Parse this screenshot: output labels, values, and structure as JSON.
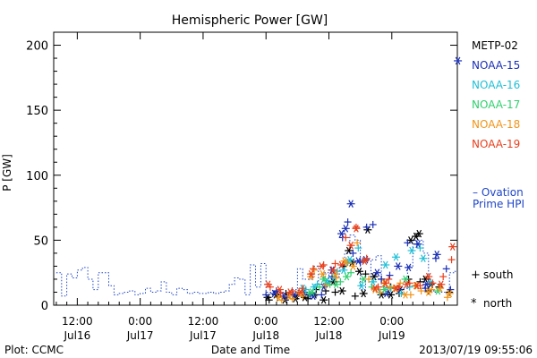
{
  "chart_data": {
    "type": "scatter",
    "title": "Hemispheric Power [GW]",
    "xlabel": "Date and Time",
    "ylabel": "P [GW]",
    "ylim": [
      0,
      210
    ],
    "yticks": [
      0,
      50,
      100,
      150,
      200
    ],
    "x_unit": "hours from 2013-07-16 00:00 UT",
    "xlim": [
      7.5,
      84.5
    ],
    "xticks": [
      {
        "x": 12,
        "line1": "12:00",
        "line2": "Jul16"
      },
      {
        "x": 24,
        "line1": "0:00",
        "line2": "Jul17"
      },
      {
        "x": 36,
        "line1": "12:00",
        "line2": "Jul17"
      },
      {
        "x": 48,
        "line1": "0:00",
        "line2": "Jul18"
      },
      {
        "x": 60,
        "line1": "12:00",
        "line2": "Jul18"
      },
      {
        "x": 72,
        "line1": "0:00",
        "line2": "Jul19"
      }
    ],
    "grid": false,
    "legend_position": "right",
    "series": [
      {
        "name": "METP-02",
        "color": "#000000",
        "south": [
          [
            48.6,
            4
          ],
          [
            50.2,
            6
          ],
          [
            51.8,
            9
          ],
          [
            54.0,
            7
          ],
          [
            56.0,
            5
          ],
          [
            57.6,
            12
          ],
          [
            59.4,
            11
          ],
          [
            61.2,
            10
          ],
          [
            62.8,
            30
          ],
          [
            65.0,
            7
          ],
          [
            67.0,
            24
          ],
          [
            70.0,
            20
          ],
          [
            71.8,
            14
          ],
          [
            73.4,
            9
          ],
          [
            75.2,
            20
          ],
          [
            77.4,
            18
          ],
          [
            79.0,
            11
          ],
          [
            81.0,
            14
          ],
          [
            83.0,
            10
          ]
        ],
        "north": [
          [
            48.3,
            6
          ],
          [
            49.9,
            8
          ],
          [
            51.6,
            4
          ],
          [
            53.6,
            5
          ],
          [
            55.4,
            6
          ],
          [
            57.2,
            8
          ],
          [
            59.0,
            4
          ],
          [
            60.8,
            18
          ],
          [
            62.5,
            11
          ],
          [
            63.8,
            42
          ],
          [
            64.4,
            33
          ],
          [
            65.8,
            26
          ],
          [
            66.6,
            9
          ],
          [
            67.4,
            58
          ],
          [
            68.6,
            22
          ],
          [
            70.0,
            8
          ],
          [
            71.8,
            8
          ],
          [
            73.6,
            12
          ],
          [
            75.6,
            50
          ],
          [
            76.6,
            53
          ],
          [
            77.2,
            55
          ],
          [
            78.4,
            20
          ],
          [
            79.4,
            16
          ]
        ]
      },
      {
        "name": "NOAA-15",
        "color": "#1a2fb6",
        "south": [
          [
            48.0,
            8
          ],
          [
            50.0,
            11
          ],
          [
            52.0,
            6
          ],
          [
            54.2,
            9
          ],
          [
            56.4,
            8
          ],
          [
            58.6,
            8
          ],
          [
            60.6,
            22
          ],
          [
            62.6,
            52
          ],
          [
            63.6,
            64
          ],
          [
            64.6,
            40
          ],
          [
            66.0,
            33
          ],
          [
            67.2,
            60
          ],
          [
            68.4,
            62
          ],
          [
            70.0,
            20
          ],
          [
            71.6,
            23
          ],
          [
            73.4,
            12
          ],
          [
            75.0,
            48
          ],
          [
            76.8,
            47
          ],
          [
            78.4,
            13
          ],
          [
            80.4,
            36
          ],
          [
            82.4,
            28
          ],
          [
            83.2,
            12
          ]
        ],
        "north": [
          [
            49.6,
            9
          ],
          [
            51.4,
            7
          ],
          [
            53.4,
            8
          ],
          [
            55.2,
            10
          ],
          [
            57.0,
            7
          ],
          [
            59.0,
            14
          ],
          [
            60.6,
            27
          ],
          [
            62.4,
            55
          ],
          [
            63.2,
            59
          ],
          [
            64.2,
            78
          ],
          [
            65.6,
            34
          ],
          [
            67.0,
            35
          ],
          [
            69.2,
            25
          ],
          [
            71.0,
            9
          ],
          [
            73.2,
            30
          ],
          [
            75.2,
            29
          ],
          [
            77.0,
            47
          ],
          [
            78.6,
            16
          ],
          [
            80.6,
            39
          ],
          [
            84.6,
            188
          ]
        ]
      },
      {
        "name": "NOAA-16",
        "color": "#1fbfd6",
        "south": [
          [
            55.6,
            12
          ],
          [
            57.8,
            16
          ],
          [
            59.6,
            17
          ],
          [
            61.6,
            26
          ],
          [
            63.6,
            33
          ],
          [
            65.6,
            44
          ],
          [
            69.6,
            10
          ],
          [
            71.8,
            13
          ],
          [
            73.8,
            9
          ],
          [
            75.4,
            14
          ],
          [
            77.4,
            44
          ],
          [
            79.4,
            18
          ]
        ],
        "north": [
          [
            55.0,
            13
          ],
          [
            57.2,
            14
          ],
          [
            59.6,
            19
          ],
          [
            61.0,
            21
          ],
          [
            62.8,
            27
          ],
          [
            64.0,
            35
          ],
          [
            66.2,
            15
          ],
          [
            68.4,
            18
          ],
          [
            70.8,
            31
          ],
          [
            72.8,
            37
          ],
          [
            75.8,
            42
          ],
          [
            78.0,
            36
          ]
        ]
      },
      {
        "name": "NOAA-17",
        "color": "#2ed06e",
        "south": [
          [
            56.2,
            9
          ],
          [
            58.2,
            14
          ],
          [
            60.2,
            16
          ],
          [
            62.2,
            18
          ],
          [
            64.2,
            25
          ],
          [
            68.2,
            14
          ],
          [
            72.4,
            13
          ],
          [
            76.4,
            15
          ]
        ],
        "north": [
          [
            56.8,
            10
          ],
          [
            59.0,
            20
          ],
          [
            61.4,
            16
          ],
          [
            63.4,
            22
          ],
          [
            66.6,
            20
          ],
          [
            70.6,
            12
          ],
          [
            74.6,
            20
          ],
          [
            80.8,
            11
          ]
        ]
      },
      {
        "name": "NOAA-18",
        "color": "#f29418",
        "south": [
          [
            51.0,
            4
          ],
          [
            53.0,
            5
          ],
          [
            55.0,
            7
          ],
          [
            57.2,
            27
          ],
          [
            59.4,
            15
          ],
          [
            61.4,
            21
          ],
          [
            63.4,
            32
          ],
          [
            65.4,
            48
          ],
          [
            67.6,
            20
          ],
          [
            69.8,
            10
          ],
          [
            71.6,
            14
          ],
          [
            73.6,
            17
          ],
          [
            75.6,
            8
          ],
          [
            77.6,
            11
          ],
          [
            79.6,
            12
          ],
          [
            82.6,
            6
          ]
        ],
        "north": [
          [
            50.4,
            6
          ],
          [
            52.4,
            7
          ],
          [
            54.4,
            9
          ],
          [
            56.6,
            22
          ],
          [
            58.8,
            24
          ],
          [
            61.2,
            24
          ],
          [
            63.0,
            34
          ],
          [
            64.6,
            30
          ],
          [
            66.8,
            34
          ],
          [
            68.8,
            12
          ],
          [
            70.6,
            17
          ],
          [
            72.6,
            13
          ],
          [
            74.6,
            8
          ],
          [
            76.6,
            15
          ],
          [
            79.0,
            10
          ],
          [
            81.2,
            13
          ],
          [
            83.0,
            9
          ]
        ]
      },
      {
        "name": "NOAA-19",
        "color": "#e8401e",
        "south": [
          [
            48.8,
            14
          ],
          [
            50.8,
            9
          ],
          [
            53.0,
            11
          ],
          [
            55.0,
            13
          ],
          [
            57.0,
            28
          ],
          [
            59.0,
            31
          ],
          [
            61.2,
            32
          ],
          [
            63.2,
            52
          ],
          [
            65.2,
            60
          ],
          [
            67.2,
            36
          ],
          [
            69.4,
            14
          ],
          [
            71.4,
            20
          ],
          [
            73.4,
            14
          ],
          [
            75.4,
            17
          ],
          [
            77.4,
            15
          ],
          [
            79.8,
            17
          ],
          [
            81.8,
            22
          ],
          [
            83.4,
            35
          ]
        ],
        "north": [
          [
            48.4,
            16
          ],
          [
            50.6,
            12
          ],
          [
            52.6,
            10
          ],
          [
            54.6,
            10
          ],
          [
            56.6,
            24
          ],
          [
            58.6,
            30
          ],
          [
            60.8,
            27
          ],
          [
            62.4,
            31
          ],
          [
            64.2,
            46
          ],
          [
            65.2,
            59
          ],
          [
            66.8,
            34
          ],
          [
            68.8,
            13
          ],
          [
            70.8,
            17
          ],
          [
            72.8,
            13
          ],
          [
            74.8,
            16
          ],
          [
            76.8,
            15
          ],
          [
            79.0,
            22
          ],
          [
            81.4,
            16
          ],
          [
            83.6,
            45
          ]
        ]
      },
      {
        "name": "Ovation Prime HPI",
        "color": "#1f46c8",
        "style": "dotted-step",
        "x": [
          8.0,
          9.0,
          10.0,
          11.0,
          12.0,
          13.0,
          14.0,
          15.0,
          16.0,
          17.0,
          18.0,
          19.0,
          20.0,
          21.0,
          22.0,
          23.0,
          24.0,
          25.0,
          26.0,
          27.0,
          28.0,
          29.0,
          30.0,
          31.0,
          32.0,
          33.0,
          34.0,
          35.0,
          36.0,
          37.0,
          38.0,
          39.0,
          40.0,
          41.0,
          42.0,
          43.0,
          44.0,
          45.0,
          46.0,
          47.0,
          48.0,
          49.0,
          50.0,
          51.0,
          52.0,
          53.0,
          54.0,
          55.0,
          56.0,
          57.0,
          58.0,
          59.0,
          60.0,
          61.0,
          62.0,
          63.0,
          64.0,
          65.0,
          66.0,
          67.0,
          68.0,
          69.0,
          70.0,
          71.0,
          72.0,
          73.0,
          74.0,
          75.0,
          76.0,
          77.0,
          78.0,
          79.0,
          80.0,
          81.0,
          82.0,
          83.0,
          84.0
        ],
        "y": [
          25,
          7,
          24,
          21,
          27,
          29,
          20,
          12,
          25,
          25,
          15,
          8,
          9,
          10,
          11,
          8,
          9,
          13,
          10,
          11,
          18,
          10,
          8,
          13,
          12,
          9,
          10,
          9,
          9,
          10,
          9,
          10,
          11,
          16,
          21,
          20,
          8,
          31,
          14,
          32,
          10,
          10,
          10,
          10,
          10,
          12,
          28,
          20,
          20,
          30,
          16,
          25,
          18,
          22,
          30,
          40,
          54,
          50,
          12,
          20,
          35,
          38,
          14,
          10,
          11,
          10,
          13,
          30,
          50,
          50,
          40,
          12,
          10,
          10,
          10,
          25,
          26
        ]
      }
    ],
    "legend": {
      "entries": [
        "METP-02",
        "NOAA-15",
        "NOAA-16",
        "NOAA-17",
        "NOAA-18",
        "NOAA-19"
      ],
      "ovation_label_1": "– Ovation",
      "ovation_label_2": "Prime HPI",
      "south_label": "south",
      "north_label": "north",
      "south_marker": "+",
      "north_marker": "*"
    }
  },
  "footer": {
    "plot_by": "Plot: CCMC",
    "timestamp": "2013/07/19 09:55:06"
  }
}
